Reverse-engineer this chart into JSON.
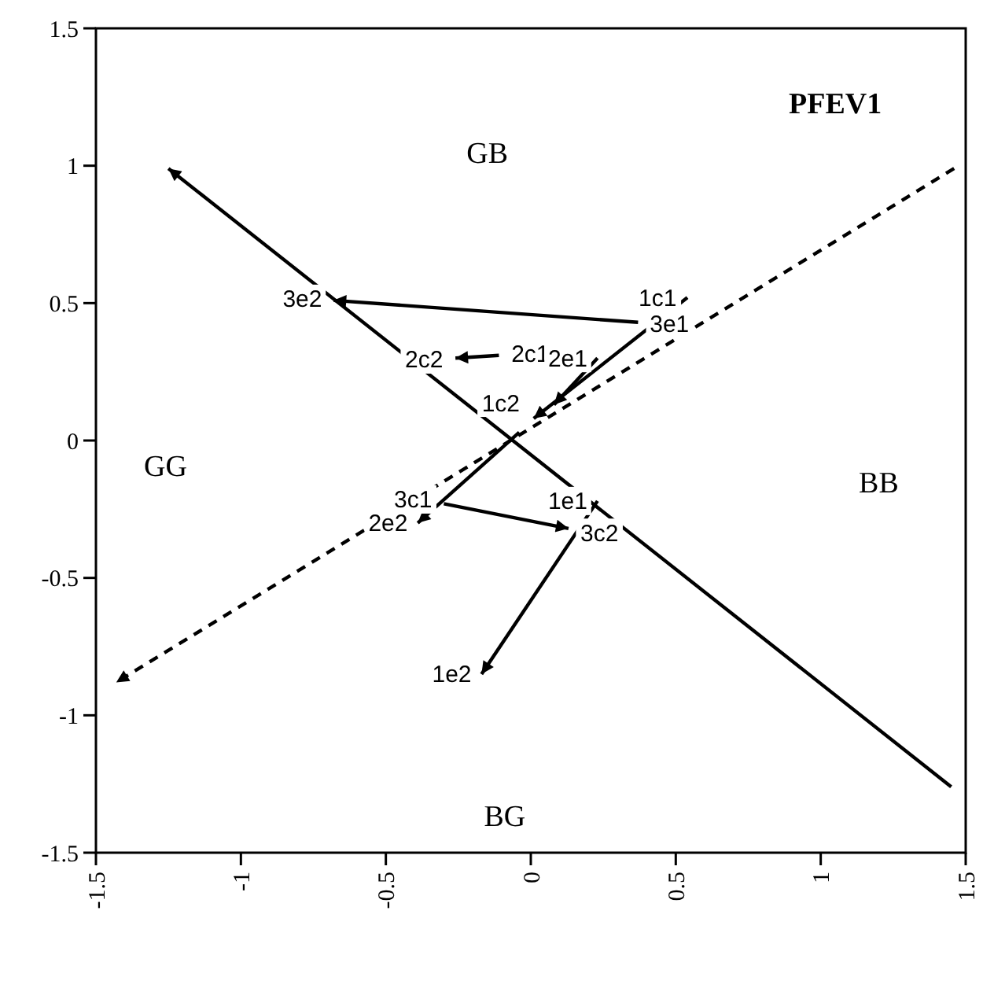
{
  "chart_data": {
    "type": "line",
    "xlim": [
      -1.5,
      1.5
    ],
    "ylim": [
      -1.5,
      1.5
    ],
    "xticks": [
      -1.5,
      -1,
      -0.5,
      0,
      0.5,
      1,
      1.5
    ],
    "yticks": [
      -1.5,
      -1,
      -0.5,
      0,
      0.5,
      1,
      1.5
    ],
    "grid": false,
    "marker": "none",
    "series": [
      {
        "color": "#000000",
        "x": [
          1.45,
          -1.25
        ],
        "values": [
          -1.26,
          0.99
        ]
      },
      {
        "color": "#000000",
        "x": [
          1.46,
          -1.43
        ],
        "values": [
          0.99,
          -0.88
        ],
        "line_style": "dashed"
      },
      {
        "color": "#000000",
        "x": [
          0.37,
          -0.68
        ],
        "values": [
          0.43,
          0.51
        ]
      },
      {
        "color": "#000000",
        "x": [
          0.54,
          0.01
        ],
        "values": [
          0.52,
          0.08
        ]
      },
      {
        "color": "#000000",
        "x": [
          0.23,
          0.08
        ],
        "values": [
          0.3,
          0.13
        ]
      },
      {
        "color": "#000000",
        "x": [
          -0.04,
          -0.39
        ],
        "values": [
          0.03,
          -0.3
        ]
      },
      {
        "color": "#000000",
        "x": [
          -0.3,
          0.13
        ],
        "values": [
          -0.23,
          -0.32
        ]
      },
      {
        "color": "#000000",
        "x": [
          0.23,
          -0.17
        ],
        "values": [
          -0.22,
          -0.85
        ]
      },
      {
        "color": "#000000",
        "x": [
          -0.11,
          -0.26
        ],
        "values": [
          0.31,
          0.3
        ]
      }
    ],
    "annotations": [
      "PFEV1",
      "GB",
      "GG",
      "BB",
      "BG",
      {
        "text": "3e2",
        "x": -0.68,
        "y": 0.51
      },
      {
        "text": "2c2",
        "x": -0.26,
        "y": 0.3
      },
      {
        "text": "2c1",
        "x": -0.11,
        "y": 0.31
      },
      {
        "text": "2e1",
        "x": 0.23,
        "y": 0.3
      },
      {
        "text": "3e1",
        "x": 0.37,
        "y": 0.43
      },
      {
        "text": "1c1",
        "x": 0.54,
        "y": 0.52
      },
      {
        "text": "1c2",
        "x": 0.01,
        "y": 0.08
      },
      {
        "text": "3c1",
        "x": -0.3,
        "y": -0.23
      },
      {
        "text": "2e2",
        "x": -0.39,
        "y": -0.3
      },
      {
        "text": "1e1",
        "x": 0.23,
        "y": -0.22
      },
      {
        "text": "3c2",
        "x": 0.13,
        "y": -0.32
      },
      {
        "text": "1e2",
        "x": -0.17,
        "y": -0.85
      }
    ]
  }
}
